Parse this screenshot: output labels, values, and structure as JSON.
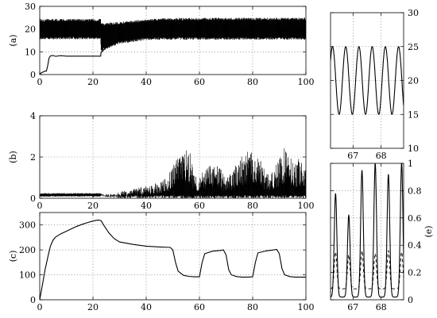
{
  "chart_data": [
    {
      "id": "a",
      "type": "line",
      "panel_label": "(a)",
      "xlim": [
        0,
        100
      ],
      "ylim": [
        0,
        30
      ],
      "xticks": [
        0,
        20,
        40,
        60,
        80,
        100
      ],
      "yticks": [
        0,
        10,
        20,
        30
      ],
      "grid": true,
      "series": [
        {
          "role": "envelope-upper",
          "style": "solid",
          "x": [
            0,
            22.9,
            23,
            30,
            40,
            48,
            100
          ],
          "values": [
            24.5,
            24.5,
            22.5,
            23.2,
            24.3,
            24.9,
            25.0
          ]
        },
        {
          "role": "envelope-lower",
          "style": "solid",
          "x": [
            0,
            22.9,
            23,
            30,
            40,
            48,
            100
          ],
          "values": [
            15.5,
            15.5,
            10.0,
            13.5,
            15.2,
            15.3,
            15.3
          ]
        },
        {
          "role": "level",
          "style": "solid",
          "x": [
            0,
            1,
            2,
            2.5,
            3,
            3.5,
            4,
            5,
            6,
            7,
            8,
            9,
            10,
            22.9,
            23,
            25,
            28,
            32,
            36,
            40,
            44,
            48,
            100
          ],
          "values": [
            0.3,
            1.0,
            1.5,
            1.5,
            4.0,
            7.2,
            8.2,
            8.4,
            8.0,
            8.2,
            8.3,
            8.2,
            8.1,
            8.1,
            9.6,
            12.0,
            14.2,
            15.8,
            17.0,
            18.0,
            18.5,
            19.0,
            19.2
          ]
        }
      ]
    },
    {
      "id": "b",
      "type": "line",
      "panel_label": "(b)",
      "xlim": [
        0,
        100
      ],
      "ylim": [
        0,
        4
      ],
      "xticks": [
        0,
        20,
        40,
        60,
        80,
        100
      ],
      "yticks": [
        0,
        2,
        4
      ],
      "grid": true,
      "series": [
        {
          "role": "envelope-upper",
          "style": "solid",
          "x": [
            0,
            23,
            25,
            30,
            35,
            40,
            45,
            48,
            50,
            53,
            56,
            58,
            60,
            62,
            65,
            68,
            70,
            73,
            75,
            78,
            80,
            82,
            84,
            86,
            88,
            90,
            92,
            94,
            96,
            98,
            100
          ],
          "values": [
            0.25,
            0.25,
            0.1,
            0.3,
            0.5,
            0.6,
            0.8,
            1.0,
            1.6,
            2.3,
            2.6,
            1.3,
            1.1,
            1.4,
            1.7,
            1.5,
            0.9,
            1.5,
            2.0,
            2.3,
            2.4,
            2.1,
            1.5,
            1.2,
            1.6,
            1.9,
            2.5,
            2.2,
            1.8,
            2.0,
            1.9
          ]
        },
        {
          "role": "envelope-lower",
          "style": "solid",
          "x": [
            0,
            23,
            30,
            40,
            50,
            60,
            70,
            80,
            90,
            100
          ],
          "values": [
            0.08,
            0.08,
            0.0,
            0.0,
            0.0,
            0.0,
            0.0,
            0.0,
            0.0,
            0.0
          ]
        }
      ]
    },
    {
      "id": "c",
      "type": "line",
      "panel_label": "(c)",
      "xlim": [
        0,
        100
      ],
      "ylim": [
        0,
        350
      ],
      "xticks": [
        0,
        20,
        40,
        60,
        80,
        100
      ],
      "yticks": [
        0,
        100,
        200,
        300
      ],
      "grid": true,
      "series": [
        {
          "style": "solid",
          "x": [
            0,
            1,
            2,
            3,
            4,
            5,
            6,
            8,
            10,
            12,
            14,
            16,
            18,
            20,
            22,
            23,
            24,
            26,
            28,
            30,
            35,
            40,
            45,
            49,
            50,
            51,
            52,
            54,
            56,
            58,
            60,
            61,
            62,
            65,
            68,
            69,
            70,
            71,
            72,
            74,
            76,
            78,
            80,
            81,
            82,
            85,
            88,
            89,
            90,
            91,
            92,
            94,
            96,
            98,
            100
          ],
          "values": [
            0,
            60,
            120,
            170,
            215,
            240,
            252,
            265,
            275,
            285,
            295,
            303,
            310,
            316,
            320,
            318,
            300,
            268,
            245,
            232,
            222,
            215,
            212,
            210,
            200,
            150,
            115,
            98,
            94,
            92,
            92,
            150,
            185,
            195,
            198,
            200,
            180,
            120,
            100,
            93,
            91,
            91,
            92,
            150,
            188,
            196,
            200,
            202,
            185,
            125,
            100,
            93,
            91,
            91,
            91
          ]
        }
      ]
    },
    {
      "id": "d",
      "type": "line",
      "panel_label": "",
      "xlim": [
        66.2,
        68.8
      ],
      "ylim": [
        10,
        30
      ],
      "xticks": [
        67,
        68
      ],
      "yticks": [
        10,
        15,
        20,
        25,
        30
      ],
      "yaxis_side": "right",
      "grid": true,
      "series": [
        {
          "style": "solid",
          "function": "sine",
          "mean": 20,
          "amplitude": 5,
          "period": 0.47,
          "phase": 0.1
        }
      ]
    },
    {
      "id": "e",
      "type": "line",
      "panel_label": "(e)",
      "xlim": [
        66.2,
        68.8
      ],
      "ylim": [
        0,
        1
      ],
      "xticks": [
        67,
        68
      ],
      "yticks": [
        0,
        0.2,
        0.4,
        0.6,
        0.8,
        1
      ],
      "yaxis_side": "right",
      "grid": true,
      "series": [
        {
          "style": "solid",
          "function": "pulses",
          "period": 0.47,
          "phase": 0.12,
          "peaks": [
            0.78,
            0.62,
            0.95,
            1.0,
            0.92,
            1.0
          ],
          "base": 0.02
        },
        {
          "style": "dashed",
          "function": "pulses",
          "period": 0.47,
          "phase": 0.12,
          "peaks": [
            0.35,
            0.33,
            0.36,
            0.34,
            0.36,
            0.35
          ],
          "base": 0.08
        }
      ]
    }
  ]
}
